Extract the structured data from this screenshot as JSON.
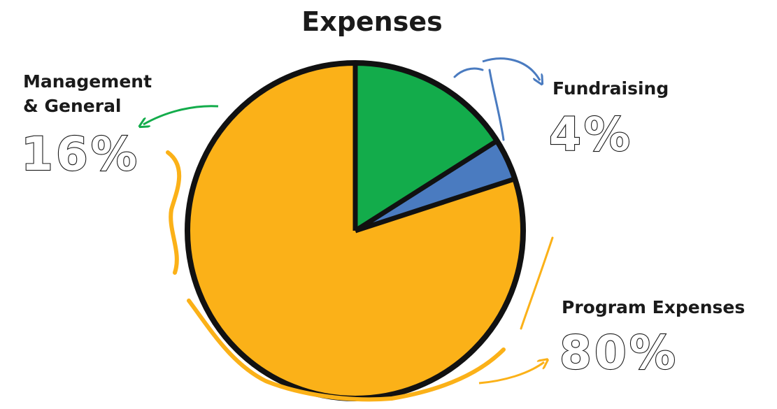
{
  "chart_data": {
    "type": "pie",
    "title": "Expenses",
    "slices": [
      {
        "label": "Program Expenses",
        "value": 80,
        "value_label": "80%",
        "color": "#FBB118"
      },
      {
        "label": "Management & General",
        "value": 16,
        "value_label": "16%",
        "color": "#13AC4B"
      },
      {
        "label": "Fundraising",
        "value": 4,
        "value_label": "4%",
        "color": "#4A7BC0"
      }
    ],
    "label_lines": {
      "management_line1": "Management",
      "management_line2": "& General"
    }
  }
}
